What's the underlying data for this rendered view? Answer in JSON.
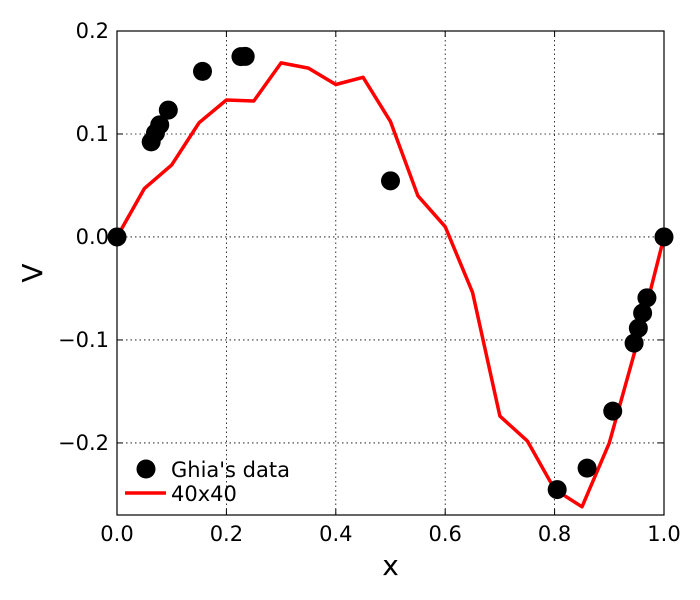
{
  "chart_data": {
    "type": "line",
    "xlabel": "x",
    "ylabel": "V",
    "xlim": [
      0.0,
      1.0
    ],
    "ylim": [
      -0.27,
      0.2
    ],
    "grid": true,
    "legend_position": "bottom-left",
    "x_ticks": [
      0.0,
      0.2,
      0.4,
      0.6,
      0.8,
      1.0
    ],
    "x_tick_labels": [
      "0.0",
      "0.2",
      "0.4",
      "0.6",
      "0.8",
      "1.0"
    ],
    "y_ticks": [
      -0.2,
      -0.1,
      0.0,
      0.1,
      0.2
    ],
    "y_tick_labels": [
      "−0.2",
      "−0.1",
      "0.0",
      "0.1",
      "0.2"
    ],
    "series": [
      {
        "name": "Ghia's data",
        "kind": "scatter",
        "color": "#000000",
        "x": [
          0.0,
          0.0625,
          0.0703,
          0.0781,
          0.0938,
          0.1563,
          0.2266,
          0.2344,
          0.5,
          0.8047,
          0.8594,
          0.9063,
          0.9453,
          0.9531,
          0.9609,
          0.9688,
          1.0
        ],
        "y": [
          0.0,
          0.0923,
          0.1009,
          0.1089,
          0.1232,
          0.1608,
          0.1751,
          0.1753,
          0.0545,
          -0.2453,
          -0.2245,
          -0.1691,
          -0.1031,
          -0.0886,
          -0.0739,
          -0.0591,
          0.0
        ]
      },
      {
        "name": "40x40",
        "kind": "line",
        "color": "#ff0000",
        "x": [
          0.0,
          0.05,
          0.1,
          0.15,
          0.2,
          0.25,
          0.3,
          0.35,
          0.4,
          0.45,
          0.5,
          0.55,
          0.6,
          0.65,
          0.7,
          0.75,
          0.8,
          0.85,
          0.9,
          0.95,
          1.0
        ],
        "y": [
          0.0,
          0.047,
          0.07,
          0.111,
          0.133,
          0.132,
          0.169,
          0.164,
          0.148,
          0.155,
          0.112,
          0.04,
          0.01,
          -0.054,
          -0.174,
          -0.198,
          -0.245,
          -0.262,
          -0.2,
          -0.105,
          0.0
        ]
      }
    ]
  }
}
